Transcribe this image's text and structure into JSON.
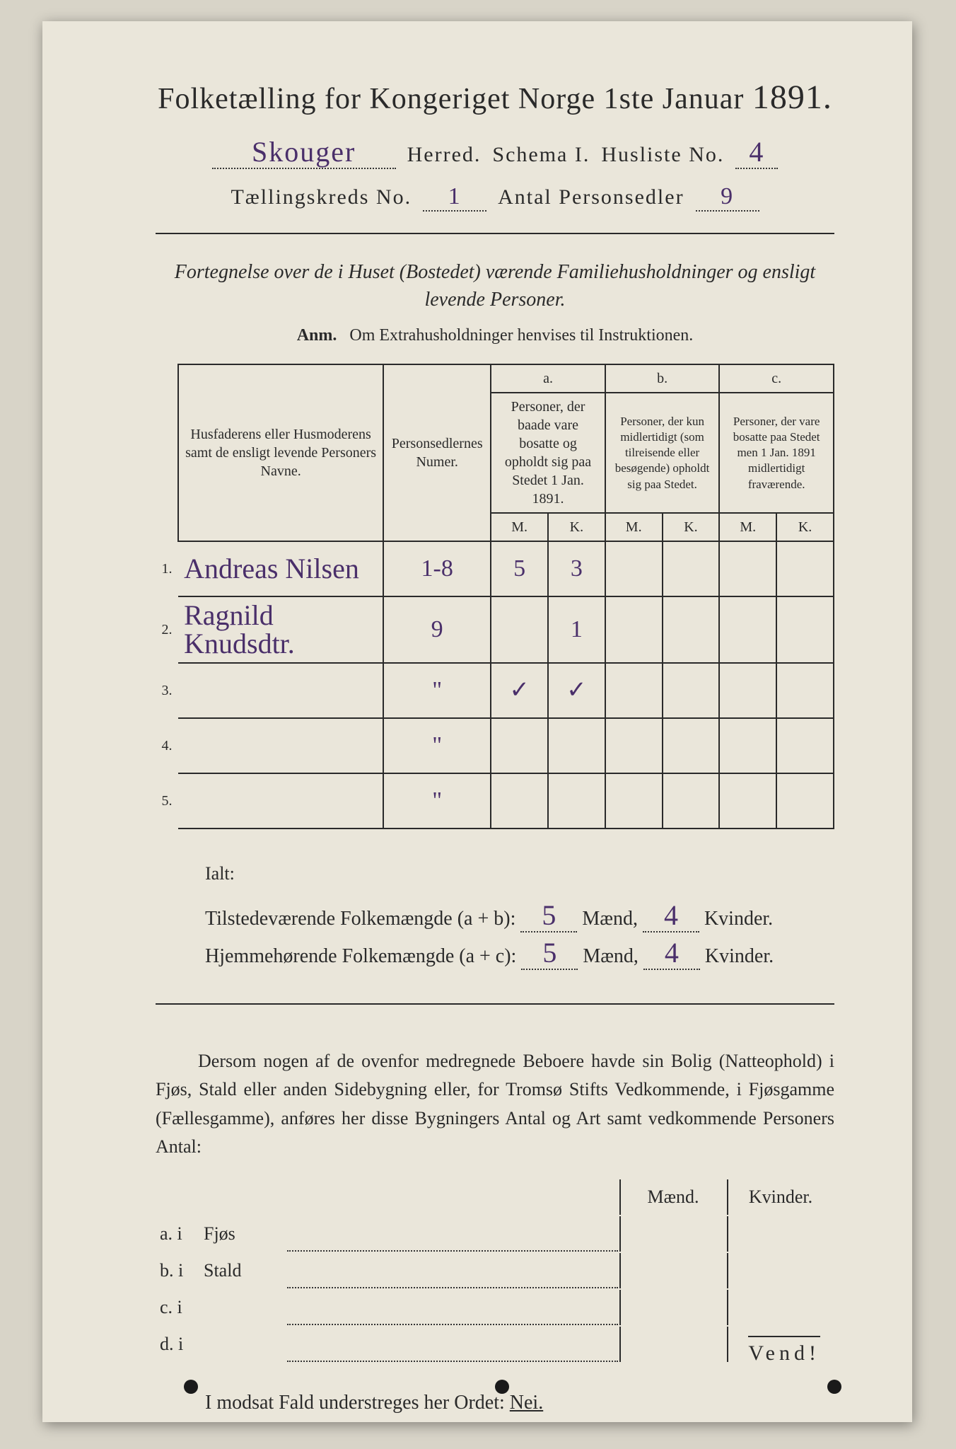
{
  "header": {
    "title_left": "Folketælling for Kongeriget Norge 1ste Januar",
    "year": "1891.",
    "herred_hand": "Skouger",
    "herred_label": "Herred.",
    "schema_label": "Schema I.",
    "husliste_label": "Husliste No.",
    "husliste_hand": "4",
    "kreds_label": "Tællingskreds No.",
    "kreds_hand": "1",
    "antal_label": "Antal Personsedler",
    "antal_hand": "9"
  },
  "intro": {
    "line1": "Fortegnelse over de i Huset (Bostedet) værende Familiehusholdninger og ensligt",
    "line2": "levende Personer.",
    "anm_label": "Anm.",
    "anm_text": "Om Extrahusholdninger henvises til Instruktionen."
  },
  "table": {
    "col_name": "Husfaderens eller Husmoderens samt de ensligt levende Personers Navne.",
    "col_nums": "Personsedlernes Numer.",
    "col_a_top": "a.",
    "col_a": "Personer, der baade vare bosatte og opholdt sig paa Stedet 1 Jan. 1891.",
    "col_b_top": "b.",
    "col_b": "Personer, der kun midlertidigt (som tilreisende eller besøgende) opholdt sig paa Stedet.",
    "col_c_top": "c.",
    "col_c": "Personer, der vare bosatte paa Stedet men 1 Jan. 1891 midlertidigt fraværende.",
    "m": "M.",
    "k": "K.",
    "rows": [
      {
        "n": "1.",
        "name": "Andreas Nilsen",
        "nums": "1-8",
        "a_m": "5",
        "a_k": "3",
        "b_m": "",
        "b_k": "",
        "c_m": "",
        "c_k": ""
      },
      {
        "n": "2.",
        "name": "Ragnild Knudsdtr.",
        "nums": "9",
        "a_m": "",
        "a_k": "1",
        "b_m": "",
        "b_k": "",
        "c_m": "",
        "c_k": ""
      },
      {
        "n": "3.",
        "name": "",
        "nums": "\"",
        "a_m": "✓",
        "a_k": "✓",
        "b_m": "",
        "b_k": "",
        "c_m": "",
        "c_k": ""
      },
      {
        "n": "4.",
        "name": "",
        "nums": "\"",
        "a_m": "",
        "a_k": "",
        "b_m": "",
        "b_k": "",
        "c_m": "",
        "c_k": ""
      },
      {
        "n": "5.",
        "name": "",
        "nums": "\"",
        "a_m": "",
        "a_k": "",
        "b_m": "",
        "b_k": "",
        "c_m": "",
        "c_k": ""
      }
    ]
  },
  "totals": {
    "ialt": "Ialt:",
    "tline": "Tilstedeværende Folkemængde (a + b):",
    "hline": "Hjemmehørende Folkemængde (a + c):",
    "t_m": "5",
    "t_k": "4",
    "h_m": "5",
    "h_k": "4",
    "maend": "Mænd,",
    "kvinder": "Kvinder."
  },
  "para": "Dersom nogen af de ovenfor medregnede Beboere havde sin Bolig (Natteophold) i Fjøs, Stald eller anden Sidebygning eller, for Tromsø Stifts Vedkommende, i Fjøsgamme (Fællesgamme), anføres her disse Bygningers Antal og Art samt vedkommende Personers Antal:",
  "secondary": {
    "head_m": "Mænd.",
    "head_k": "Kvinder.",
    "rows": [
      {
        "label": "a.  i",
        "type": "Fjøs"
      },
      {
        "label": "b.  i",
        "type": "Stald"
      },
      {
        "label": "c.  i",
        "type": ""
      },
      {
        "label": "d.  i",
        "type": ""
      }
    ]
  },
  "nei_line": {
    "pre": "I modsat Fald understreges her Ordet:",
    "nei": "Nei."
  },
  "vend": "Vend!",
  "colors": {
    "page_bg": "#eae6da",
    "body_bg": "#d8d4c8",
    "ink": "#2a2a2a",
    "handwritten": "#4a2f6a"
  }
}
